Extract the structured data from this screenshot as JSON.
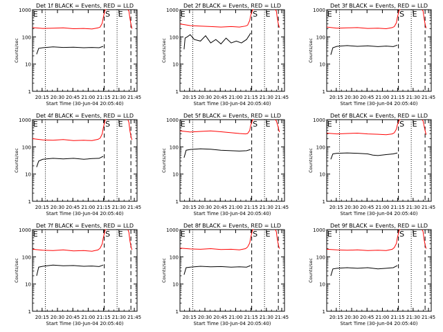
{
  "figure": {
    "xlabel": "Start Time (30-Jun-04 20:05:40)",
    "ylabel": "Counts/sec",
    "colors": {
      "events": "#000000",
      "lld": "#ff0000",
      "axes": "#000000",
      "background": "#ffffff"
    },
    "x_ticks": [
      "20:15",
      "20:30",
      "20:45",
      "21:00",
      "21:15",
      "21:30",
      "21:45"
    ],
    "x_tick_minutes": [
      9.33,
      24.33,
      39.33,
      54.33,
      69.33,
      84.33,
      99.33
    ],
    "x_range_minutes": [
      0,
      102
    ],
    "y_ticks": [
      "1",
      "10",
      "100",
      "1000"
    ],
    "y_tick_values": [
      1,
      10,
      100,
      1000
    ],
    "y_range": [
      1,
      1000
    ],
    "y_scale": "log",
    "markers": {
      "S_label": "S",
      "E_label": "E",
      "dotted_min_left": 12.5,
      "dotted_min_right": 82.5,
      "dashed_min_start": 70.0,
      "dashed_min_end": 96.0,
      "S_min": 71.0,
      "E_left_min": 0.5,
      "E_right_min": 83.5
    }
  },
  "chart_data": [
    {
      "type": "line",
      "title": "Det 1f BLACK = Events, RED = LLD",
      "series": [
        {
          "name": "Events",
          "color": "#000000",
          "x": [
            4,
            6,
            10,
            20,
            30,
            40,
            50,
            58,
            65,
            69
          ],
          "y": [
            23,
            38,
            40,
            43,
            41,
            42,
            40,
            41,
            40,
            45
          ]
        },
        {
          "name": "LLD",
          "color": "#ff0000",
          "x": [
            0,
            10,
            20,
            30,
            40,
            50,
            58,
            64,
            66,
            68,
            69,
            70.5,
            71,
            72
          ],
          "y": [
            220,
            205,
            210,
            215,
            200,
            205,
            195,
            215,
            230,
            320,
            500,
            900,
            1000,
            1000
          ]
        },
        {
          "name": "LLD",
          "color": "#ff0000",
          "x": [
            93,
            94,
            95,
            96,
            97
          ],
          "y": [
            1000,
            900,
            500,
            300,
            200
          ]
        }
      ]
    },
    {
      "type": "line",
      "title": "Det 2f BLACK = Events, RED = LLD",
      "series": [
        {
          "name": "Events",
          "color": "#000000",
          "x": [
            4,
            5,
            7,
            10,
            14,
            20,
            25,
            30,
            35,
            40,
            45,
            50,
            55,
            60,
            65,
            68,
            69
          ],
          "y": [
            35,
            90,
            100,
            120,
            80,
            70,
            110,
            60,
            80,
            55,
            90,
            60,
            70,
            60,
            80,
            120,
            140
          ]
        },
        {
          "name": "LLD",
          "color": "#ff0000",
          "x": [
            0,
            10,
            20,
            30,
            40,
            50,
            58,
            64,
            66,
            68,
            69,
            70.5,
            71,
            72
          ],
          "y": [
            300,
            260,
            250,
            240,
            230,
            240,
            230,
            250,
            270,
            400,
            600,
            900,
            1000,
            1000
          ]
        },
        {
          "name": "LLD",
          "color": "#ff0000",
          "x": [
            93,
            94,
            95,
            96,
            97
          ],
          "y": [
            1000,
            900,
            500,
            300,
            220
          ]
        }
      ]
    },
    {
      "type": "line",
      "title": "Det 3f BLACK = Events, RED = LLD",
      "series": [
        {
          "name": "Events",
          "color": "#000000",
          "x": [
            4,
            6,
            10,
            20,
            30,
            40,
            50,
            58,
            65,
            69
          ],
          "y": [
            22,
            40,
            45,
            48,
            45,
            47,
            44,
            46,
            44,
            50
          ]
        },
        {
          "name": "LLD",
          "color": "#ff0000",
          "x": [
            0,
            10,
            20,
            30,
            40,
            50,
            58,
            64,
            66,
            68,
            69,
            70.5,
            71,
            72
          ],
          "y": [
            230,
            210,
            215,
            220,
            205,
            210,
            200,
            220,
            240,
            330,
            520,
            900,
            1000,
            1000
          ]
        },
        {
          "name": "LLD",
          "color": "#ff0000",
          "x": [
            93,
            94,
            95,
            96,
            97
          ],
          "y": [
            1000,
            900,
            500,
            300,
            210
          ]
        }
      ]
    },
    {
      "type": "line",
      "title": "Det 4f BLACK = Events, RED = LLD",
      "series": [
        {
          "name": "Events",
          "color": "#000000",
          "x": [
            4,
            6,
            10,
            20,
            30,
            40,
            50,
            58,
            65,
            69
          ],
          "y": [
            18,
            30,
            35,
            38,
            36,
            38,
            35,
            37,
            38,
            45
          ]
        },
        {
          "name": "LLD",
          "color": "#ff0000",
          "x": [
            0,
            10,
            20,
            30,
            40,
            50,
            58,
            64,
            66,
            68,
            69,
            70.5,
            71,
            72
          ],
          "y": [
            200,
            180,
            175,
            185,
            170,
            175,
            170,
            190,
            210,
            300,
            480,
            850,
            1000,
            1000
          ]
        },
        {
          "name": "LLD",
          "color": "#ff0000",
          "x": [
            93,
            94,
            95,
            96,
            97
          ],
          "y": [
            1000,
            800,
            400,
            250,
            180
          ]
        }
      ]
    },
    {
      "type": "line",
      "title": "Det 5f BLACK = Events, RED = LLD",
      "series": [
        {
          "name": "Events",
          "color": "#000000",
          "x": [
            4,
            6,
            10,
            20,
            30,
            40,
            50,
            58,
            65,
            69
          ],
          "y": [
            40,
            75,
            80,
            85,
            82,
            75,
            72,
            70,
            72,
            80
          ]
        },
        {
          "name": "LLD",
          "color": "#ff0000",
          "x": [
            0,
            10,
            20,
            30,
            40,
            50,
            58,
            64,
            66,
            68,
            69,
            70.5,
            71,
            72
          ],
          "y": [
            390,
            350,
            370,
            385,
            360,
            330,
            310,
            300,
            310,
            400,
            600,
            900,
            1000,
            1000
          ]
        },
        {
          "name": "LLD",
          "color": "#ff0000",
          "x": [
            93,
            94,
            95,
            96,
            97
          ],
          "y": [
            1000,
            900,
            700,
            500,
            350
          ]
        }
      ]
    },
    {
      "type": "line",
      "title": "Det 6f BLACK = Events, RED = LLD",
      "series": [
        {
          "name": "Events",
          "color": "#000000",
          "x": [
            4,
            6,
            10,
            20,
            30,
            40,
            45,
            50,
            58,
            65,
            69
          ],
          "y": [
            35,
            55,
            58,
            60,
            58,
            55,
            50,
            48,
            52,
            55,
            60
          ]
        },
        {
          "name": "LLD",
          "color": "#ff0000",
          "x": [
            0,
            10,
            20,
            30,
            40,
            50,
            58,
            64,
            66,
            68,
            69,
            70.5,
            71,
            72
          ],
          "y": [
            320,
            300,
            310,
            320,
            300,
            290,
            280,
            300,
            330,
            450,
            650,
            900,
            1000,
            1000
          ]
        },
        {
          "name": "LLD",
          "color": "#ff0000",
          "x": [
            93,
            94,
            95,
            96,
            97
          ],
          "y": [
            1000,
            900,
            600,
            400,
            280
          ]
        }
      ]
    },
    {
      "type": "line",
      "title": "Det 7f BLACK = Events, RED = LLD",
      "series": [
        {
          "name": "Events",
          "color": "#000000",
          "x": [
            4,
            6,
            10,
            20,
            30,
            40,
            50,
            58,
            65,
            69
          ],
          "y": [
            20,
            42,
            45,
            50,
            47,
            48,
            45,
            46,
            44,
            50
          ]
        },
        {
          "name": "LLD",
          "color": "#ff0000",
          "x": [
            0,
            10,
            20,
            30,
            40,
            50,
            58,
            64,
            66,
            68,
            69,
            70.5,
            71,
            72
          ],
          "y": [
            190,
            175,
            170,
            180,
            165,
            170,
            160,
            180,
            210,
            300,
            480,
            850,
            1000,
            1000
          ]
        },
        {
          "name": "LLD",
          "color": "#ff0000",
          "x": [
            93,
            94,
            95,
            96,
            97
          ],
          "y": [
            1000,
            800,
            400,
            250,
            180
          ]
        }
      ]
    },
    {
      "type": "line",
      "title": "Det 8f BLACK = Events, RED = LLD",
      "series": [
        {
          "name": "Events",
          "color": "#000000",
          "x": [
            4,
            6,
            10,
            20,
            30,
            40,
            50,
            58,
            65,
            69
          ],
          "y": [
            22,
            40,
            42,
            45,
            43,
            44,
            42,
            43,
            42,
            48
          ]
        },
        {
          "name": "LLD",
          "color": "#ff0000",
          "x": [
            0,
            10,
            20,
            30,
            40,
            50,
            58,
            64,
            66,
            68,
            69,
            70.5,
            71,
            72
          ],
          "y": [
            210,
            195,
            190,
            200,
            185,
            190,
            180,
            200,
            230,
            320,
            500,
            880,
            1000,
            1000
          ]
        },
        {
          "name": "LLD",
          "color": "#ff0000",
          "x": [
            93,
            94,
            95,
            96,
            97
          ],
          "y": [
            1000,
            850,
            450,
            280,
            200
          ]
        }
      ]
    },
    {
      "type": "line",
      "title": "Det 9f BLACK = Events, RED = LLD",
      "series": [
        {
          "name": "Events",
          "color": "#000000",
          "x": [
            4,
            6,
            10,
            20,
            30,
            40,
            50,
            58,
            65,
            69
          ],
          "y": [
            20,
            36,
            38,
            40,
            38,
            40,
            36,
            38,
            40,
            48
          ]
        },
        {
          "name": "LLD",
          "color": "#ff0000",
          "x": [
            0,
            10,
            20,
            30,
            40,
            50,
            58,
            64,
            66,
            68,
            69,
            70.5,
            71,
            72
          ],
          "y": [
            190,
            180,
            175,
            180,
            170,
            175,
            170,
            190,
            220,
            310,
            500,
            880,
            1000,
            1000
          ]
        },
        {
          "name": "LLD",
          "color": "#ff0000",
          "x": [
            93,
            94,
            95,
            96,
            97
          ],
          "y": [
            1000,
            850,
            450,
            280,
            200
          ]
        }
      ]
    }
  ]
}
